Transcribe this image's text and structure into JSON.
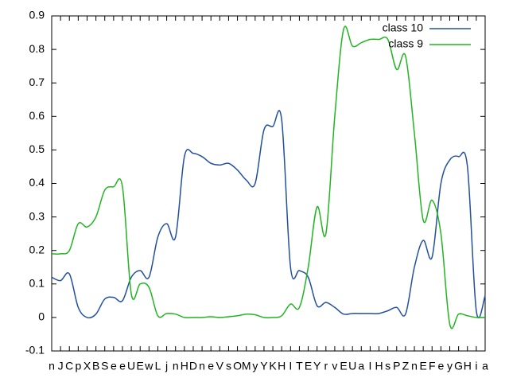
{
  "chart_data": {
    "type": "line",
    "categories": [
      "n",
      "J",
      "C",
      "p",
      "X",
      "B",
      "S",
      "e",
      "e",
      "U",
      "E",
      "w",
      "L",
      "j",
      "n",
      "H",
      "D",
      "n",
      "e",
      "V",
      "s",
      "O",
      "M",
      "y",
      "Y",
      "K",
      "H",
      "I",
      "T",
      "E",
      "Y",
      "r",
      "v",
      "E",
      "U",
      "a",
      "I",
      "H",
      "s",
      "P",
      "Z",
      "n",
      "E",
      "F",
      "e",
      "y",
      "G",
      "H",
      "i",
      "a"
    ],
    "series": [
      {
        "name": "class 10",
        "color": "#22509c",
        "values": [
          0.12,
          0.11,
          0.13,
          0.03,
          0.0,
          0.01,
          0.055,
          0.06,
          0.05,
          0.12,
          0.14,
          0.12,
          0.24,
          0.28,
          0.24,
          0.48,
          0.49,
          0.48,
          0.46,
          0.455,
          0.46,
          0.44,
          0.41,
          0.4,
          0.56,
          0.57,
          0.59,
          0.15,
          0.14,
          0.12,
          0.035,
          0.045,
          0.03,
          0.01,
          0.012,
          0.012,
          0.012,
          0.012,
          0.02,
          0.03,
          0.01,
          0.15,
          0.23,
          0.18,
          0.4,
          0.47,
          0.48,
          0.45,
          0.02,
          0.065
        ]
      },
      {
        "name": "class 9",
        "color": "#22b422",
        "values": [
          0.19,
          0.19,
          0.2,
          0.28,
          0.27,
          0.3,
          0.38,
          0.39,
          0.39,
          0.07,
          0.1,
          0.09,
          0.005,
          0.012,
          0.01,
          0,
          0,
          0,
          0.002,
          0,
          0.002,
          0.005,
          0.01,
          0.008,
          0,
          0,
          0.005,
          0.04,
          0.03,
          0.15,
          0.33,
          0.25,
          0.6,
          0.86,
          0.81,
          0.82,
          0.83,
          0.83,
          0.83,
          0.74,
          0.78,
          0.55,
          0.29,
          0.35,
          0.25,
          -0.02,
          0.01,
          0.005,
          0,
          0
        ]
      }
    ],
    "ylim": [
      -0.1,
      0.9
    ],
    "yticks": [
      -0.1,
      0,
      0.1,
      0.2,
      0.3,
      0.4,
      0.5,
      0.6,
      0.7,
      0.8,
      0.9
    ],
    "legend": "top-right"
  }
}
